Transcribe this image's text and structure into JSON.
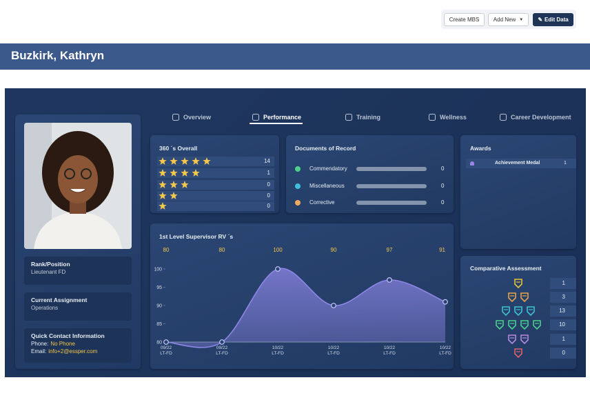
{
  "toolbar": {
    "buttons": [
      "Create MBS",
      "Add New",
      "Edit Data"
    ]
  },
  "header": {
    "title": "Buzkirk, Kathryn"
  },
  "tabs": [
    "Overview",
    "Performance",
    "Training",
    "Wellness",
    "Career Development"
  ],
  "profile": {
    "fields": [
      {
        "label": "Rank/Position",
        "value": "Lieutenant FD"
      },
      {
        "label": "Current Assignment",
        "value": "Operations"
      }
    ],
    "contact": {
      "label": "Quick Contact Information",
      "phone_label": "Phone:",
      "phone": "No Phone",
      "email_label": "Email:",
      "email": "info+2@essper.com"
    }
  },
  "overall_360": {
    "title": "360 ´s Overall",
    "rows": [
      {
        "stars": 5,
        "count": 14
      },
      {
        "stars": 4,
        "count": 1
      },
      {
        "stars": 3,
        "count": 0
      },
      {
        "stars": 2,
        "count": 0
      },
      {
        "stars": 1,
        "count": 0
      }
    ]
  },
  "documents": {
    "title": "Documents of Record",
    "items": [
      {
        "name": "Commendatory",
        "color": "#4cd18a",
        "count": 0
      },
      {
        "name": "Miscellaneous",
        "color": "#3ec1e0",
        "count": 0
      },
      {
        "name": "Corrective",
        "color": "#f0a860",
        "count": 0
      }
    ]
  },
  "awards": {
    "title": "Awards",
    "items": [
      {
        "name": "Achievement Medal",
        "count": 1
      }
    ]
  },
  "comparative": {
    "title": "Comparative Assessment",
    "rows": [
      {
        "badges": 1,
        "color": "#e8c23a",
        "count": 1
      },
      {
        "badges": 2,
        "color": "#e8a448",
        "count": 3
      },
      {
        "badges": 3,
        "color": "#3ec1d0",
        "count": 13
      },
      {
        "badges": 4,
        "color": "#4cd18a",
        "count": 10
      },
      {
        "badges": 2,
        "color": "#b889e0",
        "count": 1
      },
      {
        "badges": 1,
        "color": "#e0606a",
        "count": 0
      }
    ]
  },
  "chart_data": {
    "type": "line",
    "title": "1st Level Supervisor RV ´s",
    "categories": [
      "09/22\nLT-FD",
      "09/22\nLT-FD",
      "10/22\nLT-FD",
      "10/22\nLT-FD",
      "10/22\nLT-FD",
      "10/22\nLT-FD"
    ],
    "values": [
      80,
      80,
      100,
      90,
      97,
      91
    ],
    "color": "#8d86e6",
    "ylim": [
      80,
      100
    ],
    "yticks": [
      80,
      85,
      90,
      95,
      100
    ]
  }
}
